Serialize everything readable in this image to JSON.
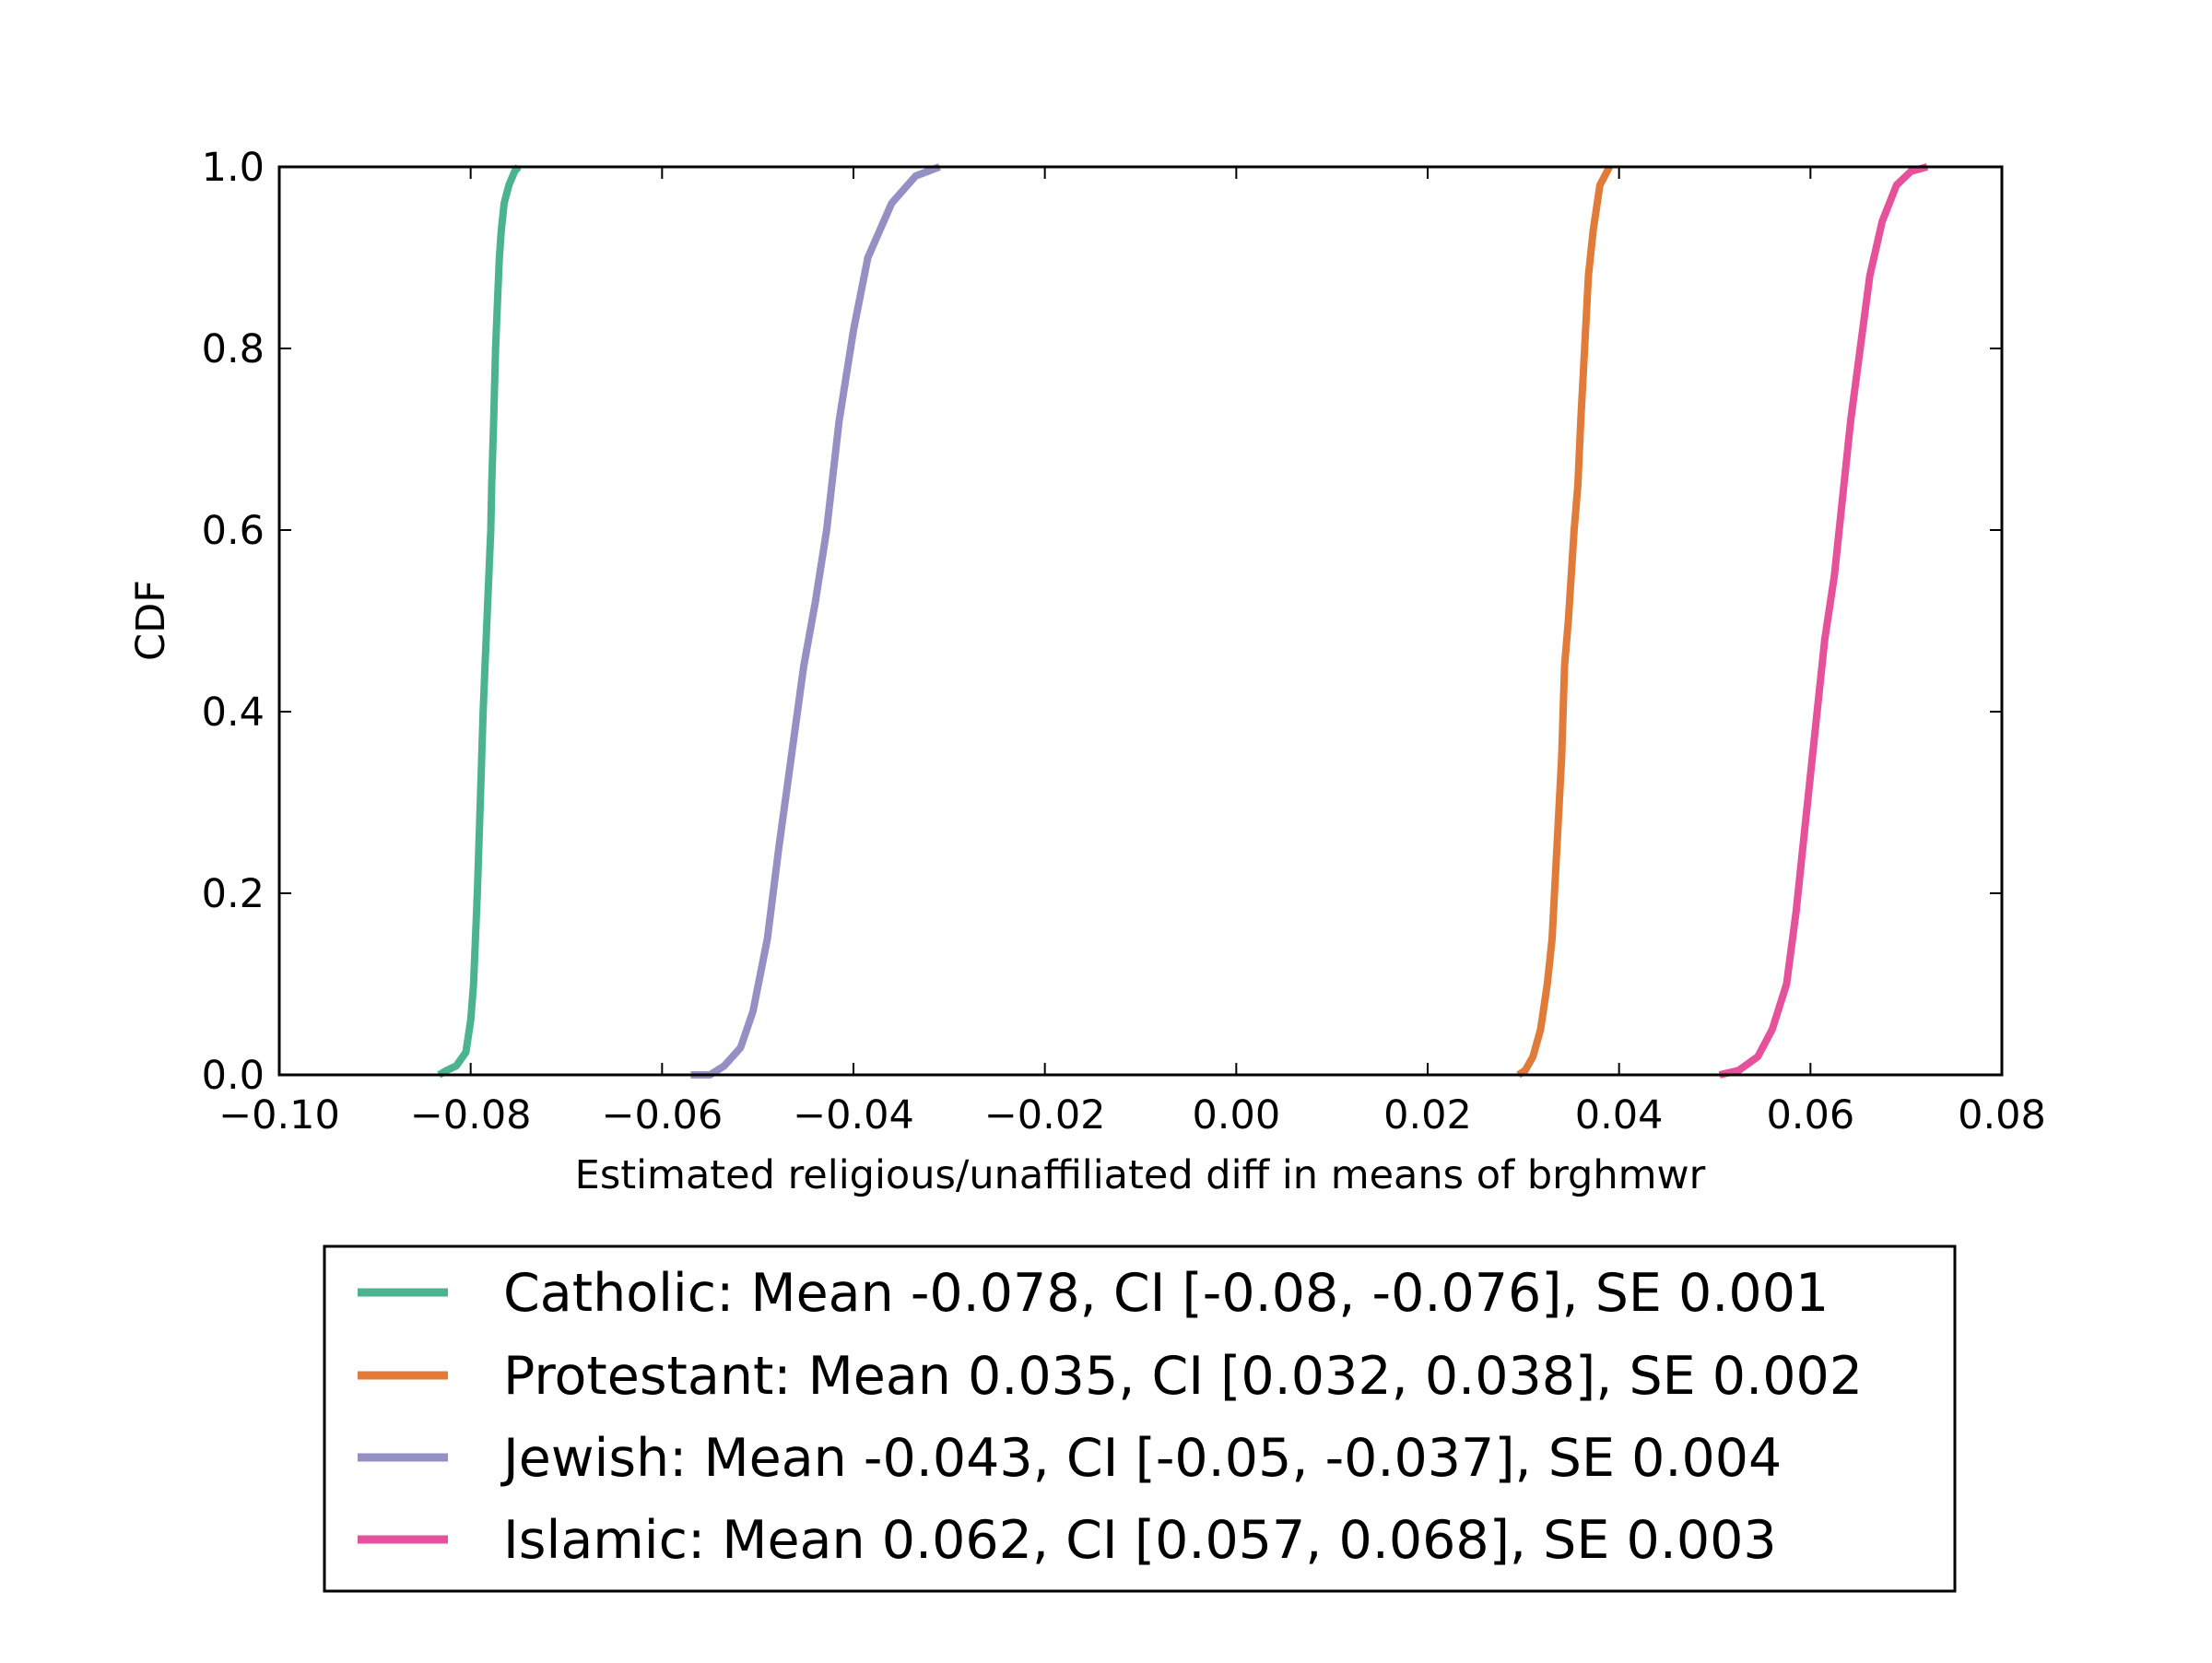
{
  "chart_data": {
    "type": "line",
    "title": "",
    "xlabel": "Estimated religious/unaffiliated diff in means of brghmwr",
    "ylabel": "CDF",
    "xlim": [
      -0.1,
      0.08
    ],
    "ylim": [
      0.0,
      1.0
    ],
    "x_ticks": [
      -0.1,
      -0.08,
      -0.06,
      -0.04,
      -0.02,
      0.0,
      0.02,
      0.04,
      0.06,
      0.08
    ],
    "x_tick_labels": [
      "−0.10",
      "−0.08",
      "−0.06",
      "−0.04",
      "−0.02",
      "0.00",
      "0.02",
      "0.04",
      "0.06",
      "0.08"
    ],
    "y_ticks": [
      0.0,
      0.2,
      0.4,
      0.6,
      0.8,
      1.0
    ],
    "y_tick_labels": [
      "0.0",
      "0.2",
      "0.4",
      "0.6",
      "0.8",
      "1.0"
    ],
    "grid": false,
    "legend_position": "below-plot",
    "series": [
      {
        "name": "Catholic: Mean -0.078, CI [-0.08, -0.076], SE 0.001",
        "color": "#4cb391",
        "x": [
          -0.0833,
          -0.0825,
          -0.0815,
          -0.0805,
          -0.08,
          -0.0797,
          -0.0793,
          -0.079,
          -0.0787,
          -0.0785,
          -0.0783,
          -0.0781,
          -0.0779,
          -0.0778,
          -0.0776,
          -0.0774,
          -0.0772,
          -0.077,
          -0.0768,
          -0.0765,
          -0.076,
          -0.0754,
          -0.075
        ],
        "y": [
          0.0,
          0.005,
          0.01,
          0.025,
          0.06,
          0.1,
          0.2,
          0.3,
          0.4,
          0.45,
          0.5,
          0.55,
          0.6,
          0.65,
          0.72,
          0.8,
          0.85,
          0.9,
          0.93,
          0.96,
          0.98,
          0.995,
          1.0
        ]
      },
      {
        "name": "Protestant: Mean 0.035, CI [0.032, 0.038], SE 0.002",
        "color": "#e07b39",
        "x": [
          0.0295,
          0.0302,
          0.031,
          0.0318,
          0.0325,
          0.033,
          0.0335,
          0.034,
          0.0343,
          0.0347,
          0.035,
          0.0353,
          0.0357,
          0.036,
          0.0364,
          0.0368,
          0.0373,
          0.038,
          0.039
        ],
        "y": [
          0.0,
          0.005,
          0.02,
          0.05,
          0.1,
          0.15,
          0.25,
          0.35,
          0.45,
          0.5,
          0.55,
          0.6,
          0.65,
          0.72,
          0.8,
          0.88,
          0.93,
          0.98,
          1.0
        ]
      },
      {
        "name": "Jewish: Mean -0.043, CI [-0.05, -0.037], SE 0.004",
        "color": "#9590c4",
        "x": [
          -0.057,
          -0.055,
          -0.0535,
          -0.0518,
          -0.0505,
          -0.049,
          -0.0478,
          -0.0465,
          -0.0452,
          -0.044,
          -0.0428,
          -0.0415,
          -0.04,
          -0.0385,
          -0.036,
          -0.0335,
          -0.031
        ],
        "y": [
          0.0,
          0.0,
          0.01,
          0.03,
          0.07,
          0.15,
          0.25,
          0.35,
          0.45,
          0.52,
          0.6,
          0.72,
          0.82,
          0.9,
          0.96,
          0.99,
          1.0
        ]
      },
      {
        "name": "Islamic: Mean 0.062, CI [0.057, 0.068], SE 0.003",
        "color": "#e6519b",
        "x": [
          0.0505,
          0.0525,
          0.0545,
          0.056,
          0.0575,
          0.0585,
          0.0595,
          0.0605,
          0.0615,
          0.0625,
          0.0633,
          0.0642,
          0.0652,
          0.0662,
          0.0675,
          0.069,
          0.0705,
          0.0722
        ],
        "y": [
          0.0,
          0.005,
          0.02,
          0.05,
          0.1,
          0.18,
          0.28,
          0.38,
          0.48,
          0.55,
          0.63,
          0.72,
          0.8,
          0.88,
          0.94,
          0.98,
          0.995,
          1.0
        ]
      }
    ]
  }
}
